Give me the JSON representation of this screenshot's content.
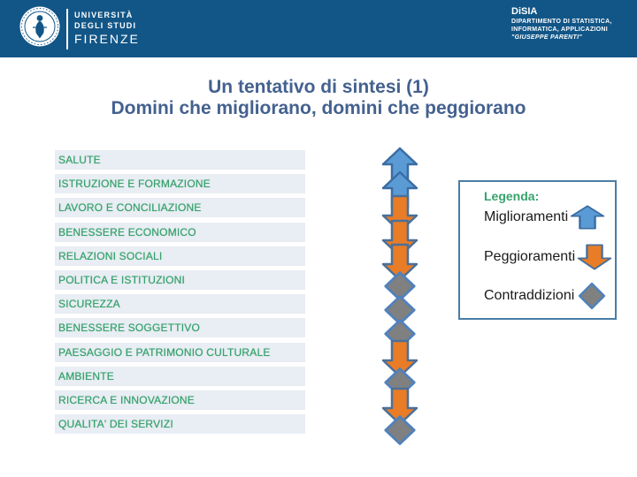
{
  "header": {
    "university": {
      "line1": "UNIVERSITÀ",
      "line2": "DEGLI STUDI",
      "line3": "FIRENZE"
    },
    "department": {
      "acronym": "DiSIA",
      "line1": "DIPARTIMENTO DI STATISTICA,",
      "line2": "INFORMATICA, APPLICAZIONI",
      "line3": "\"GIUSEPPE PARENTI\""
    }
  },
  "title": {
    "line1": "Un tentativo di sintesi (1)",
    "line2": "Domini che migliorano, domini che peggiorano"
  },
  "domains": [
    {
      "label": "SALUTE",
      "trend": "up",
      "symbol": "up-arrow-icon"
    },
    {
      "label": "ISTRUZIONE E FORMAZIONE",
      "trend": "up",
      "symbol": "up-arrow-icon"
    },
    {
      "label": "LAVORO E CONCILIAZIONE",
      "trend": "down",
      "symbol": "down-arrow-icon"
    },
    {
      "label": "BENESSERE ECONOMICO",
      "trend": "down",
      "symbol": "down-arrow-icon"
    },
    {
      "label": "RELAZIONI SOCIALI",
      "trend": "down",
      "symbol": "down-arrow-icon"
    },
    {
      "label": "POLITICA E ISTITUZIONI",
      "trend": "mixed",
      "symbol": "diamond-icon"
    },
    {
      "label": "SICUREZZA",
      "trend": "mixed",
      "symbol": "diamond-icon"
    },
    {
      "label": "BENESSERE SOGGETTIVO",
      "trend": "mixed",
      "symbol": "diamond-icon"
    },
    {
      "label": "PAESAGGIO E PATRIMONIO CULTURALE",
      "trend": "down",
      "symbol": "down-arrow-icon"
    },
    {
      "label": "AMBIENTE",
      "trend": "mixed",
      "symbol": "diamond-icon"
    },
    {
      "label": "RICERCA E INNOVAZIONE",
      "trend": "down",
      "symbol": "down-arrow-icon"
    },
    {
      "label": "QUALITA' DEI SERVIZI",
      "trend": "mixed",
      "symbol": "diamond-icon"
    }
  ],
  "legend": {
    "title": "Legenda:",
    "items": [
      {
        "label": "Miglioramenti",
        "symbol": "up-arrow-icon"
      },
      {
        "label": "Peggioramenti",
        "symbol": "down-arrow-icon"
      },
      {
        "label": "Contraddizioni",
        "symbol": "diamond-icon"
      }
    ]
  },
  "colors": {
    "header_blue": "#125687",
    "title_blue": "#44618f",
    "domain_green": "#36a26b",
    "row_bg": "#e9edf4",
    "legend_border": "#4a7da5",
    "up_arrow_fill": "#5b9bd5",
    "up_arrow_stroke": "#3a6da3",
    "down_arrow_fill": "#e97c26",
    "down_arrow_stroke": "#4a7099",
    "diamond_fill": "#808080",
    "diamond_stroke": "#4f81bd"
  }
}
